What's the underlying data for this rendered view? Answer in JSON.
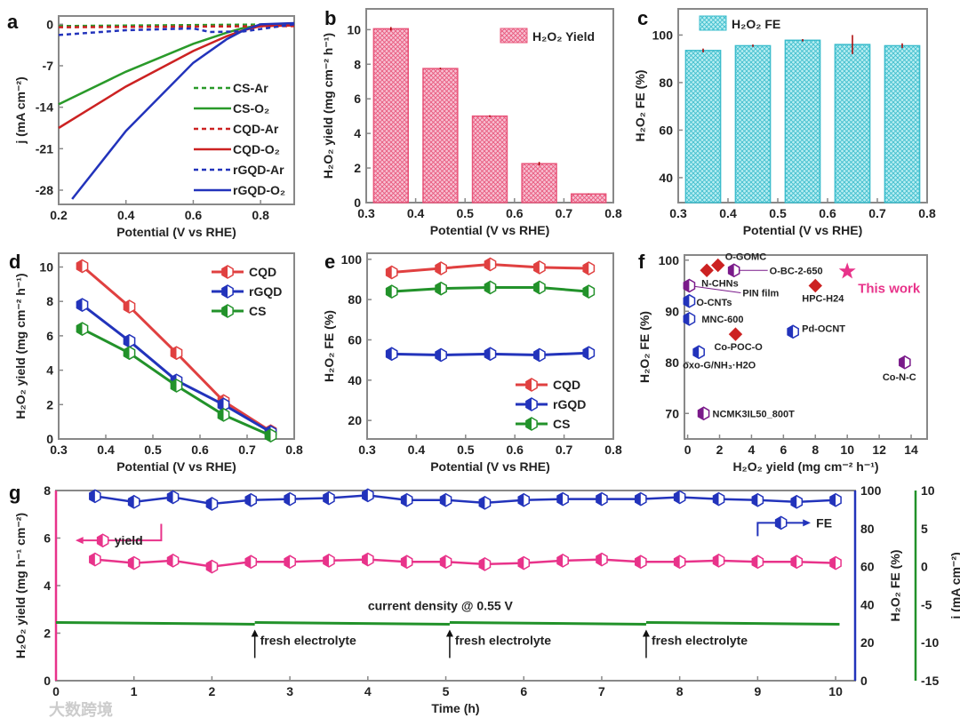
{
  "chart_data": [
    {
      "panel": "a",
      "type": "line",
      "xlabel": "Potential (V vs RHE)",
      "ylabel": "j (mA cm-2)",
      "xlim": [
        0.2,
        0.9
      ],
      "ylim": [
        -30.4,
        1.4
      ],
      "xticks": [
        "0.2",
        "0.4",
        "0.6",
        "0.8"
      ],
      "yticks": [
        "0",
        "-7",
        "-14",
        "-21",
        "-28"
      ],
      "legend": "center-right",
      "series": [
        {
          "name": "CS-Ar",
          "color": "#2a9a2a",
          "dash": true,
          "x": [
            0.2,
            0.9
          ],
          "y": [
            -0.3,
            0
          ]
        },
        {
          "name": "CS-O2",
          "color": "#2a9a2a",
          "dash": false,
          "x": [
            0.2,
            0.4,
            0.6,
            0.7,
            0.75,
            0.8,
            0.9
          ],
          "y": [
            -13.5,
            -8,
            -3.3,
            -1.4,
            -0.6,
            -0.2,
            0
          ]
        },
        {
          "name": "CQD-Ar",
          "color": "#cc2222",
          "dash": true,
          "x": [
            0.2,
            0.9
          ],
          "y": [
            -0.5,
            -0.3
          ]
        },
        {
          "name": "CQD-O2",
          "color": "#cc2222",
          "dash": false,
          "x": [
            0.2,
            0.4,
            0.6,
            0.7,
            0.75,
            0.8,
            0.9
          ],
          "y": [
            -17.5,
            -10.5,
            -4.5,
            -2,
            -1,
            -0.3,
            -0.2
          ]
        },
        {
          "name": "rGQD-Ar",
          "color": "#2233bb",
          "dash": true,
          "x": [
            0.2,
            0.4,
            0.6,
            0.65,
            0.75,
            0.9
          ],
          "y": [
            -1.8,
            -1,
            -0.7,
            -1.3,
            -1.2,
            0
          ]
        },
        {
          "name": "rGQD-O2",
          "color": "#2233bb",
          "dash": false,
          "x": [
            0.24,
            0.4,
            0.6,
            0.7,
            0.75,
            0.8,
            0.9
          ],
          "y": [
            -29.5,
            -18,
            -6.5,
            -2.5,
            -1,
            0,
            0.2
          ]
        }
      ]
    },
    {
      "panel": "b",
      "type": "bar",
      "xlabel": "Potential (V vs RHE)",
      "ylabel": "H2O2 yield (mg cm-2 h-1)",
      "xlim": [
        0.3,
        0.8
      ],
      "ylim": [
        0,
        11.2
      ],
      "xticks": [
        "0.3",
        "0.4",
        "0.5",
        "0.6",
        "0.7",
        "0.8"
      ],
      "yticks": [
        "0",
        "2",
        "4",
        "6",
        "8",
        "10"
      ],
      "legend": "top-right",
      "legend_label": "H2O2 Yield",
      "color": "#e8557a",
      "x": [
        0.35,
        0.45,
        0.55,
        0.65,
        0.75
      ],
      "values": [
        10.05,
        7.75,
        5.0,
        2.25,
        0.5
      ],
      "errors": [
        0.1,
        0.05,
        0.05,
        0.1,
        0.02
      ]
    },
    {
      "panel": "c",
      "type": "bar",
      "xlabel": "Potential (V vs RHE)",
      "ylabel": "H2O2 FE (%)",
      "xlim": [
        0.3,
        0.8
      ],
      "ylim": [
        29.5,
        111
      ],
      "xticks": [
        "0.3",
        "0.4",
        "0.5",
        "0.6",
        "0.7",
        "0.8"
      ],
      "yticks": [
        "40",
        "60",
        "80",
        "100"
      ],
      "legend": "top-left",
      "legend_label": "H2O2 FE",
      "color": "#3bbccc",
      "x": [
        0.35,
        0.45,
        0.55,
        0.65,
        0.75
      ],
      "values": [
        93.5,
        95.5,
        97.8,
        96,
        95.5
      ],
      "errors": [
        0.8,
        0.5,
        0.5,
        4,
        1
      ]
    },
    {
      "panel": "d",
      "type": "line",
      "xlabel": "Potential (V vs RHE)",
      "ylabel": "H2O2 yield (mg cm-2 h-1)",
      "xlim": [
        0.3,
        0.8
      ],
      "ylim": [
        0,
        10.8
      ],
      "xticks": [
        "0.3",
        "0.4",
        "0.5",
        "0.6",
        "0.7",
        "0.8"
      ],
      "yticks": [
        "0",
        "2",
        "4",
        "6",
        "8",
        "10"
      ],
      "legend": "top-right",
      "series": [
        {
          "name": "CQD",
          "color": "#e04040",
          "x": [
            0.35,
            0.45,
            0.55,
            0.65,
            0.75
          ],
          "y": [
            10.05,
            7.7,
            5.0,
            2.2,
            0.45
          ]
        },
        {
          "name": "rGQD",
          "color": "#2233bb",
          "x": [
            0.35,
            0.45,
            0.55,
            0.65,
            0.75
          ],
          "y": [
            7.8,
            5.7,
            3.4,
            2.0,
            0.4
          ]
        },
        {
          "name": "CS",
          "color": "#22922a",
          "x": [
            0.35,
            0.45,
            0.55,
            0.65,
            0.75
          ],
          "y": [
            6.4,
            5.0,
            3.1,
            1.4,
            0.2
          ]
        }
      ]
    },
    {
      "panel": "e",
      "type": "line",
      "xlabel": "Potential (V vs RHE)",
      "ylabel": "H2O2 FE (%)",
      "xlim": [
        0.3,
        0.8
      ],
      "ylim": [
        10.8,
        103
      ],
      "xticks": [
        "0.3",
        "0.4",
        "0.5",
        "0.6",
        "0.7",
        "0.8"
      ],
      "yticks": [
        "20",
        "40",
        "60",
        "80",
        "100"
      ],
      "legend": "bottom-right",
      "series": [
        {
          "name": "CQD",
          "color": "#e04040",
          "x": [
            0.35,
            0.45,
            0.55,
            0.65,
            0.75
          ],
          "y": [
            93.5,
            95.5,
            97.5,
            96,
            95.5
          ]
        },
        {
          "name": "rGQD",
          "color": "#2233bb",
          "x": [
            0.35,
            0.45,
            0.55,
            0.65,
            0.75
          ],
          "y": [
            53,
            52.5,
            53,
            52.5,
            53.5
          ]
        },
        {
          "name": "CS",
          "color": "#22922a",
          "x": [
            0.35,
            0.45,
            0.55,
            0.65,
            0.75
          ],
          "y": [
            84,
            85.5,
            86,
            86,
            84
          ]
        }
      ]
    },
    {
      "panel": "f",
      "type": "scatter",
      "xlabel": "H2O2 yield (mg cm-2 h-1)",
      "ylabel": "H2O2 FE (%)",
      "xlim": [
        -0.2,
        15
      ],
      "ylim": [
        65,
        101
      ],
      "xticks": [
        "0",
        "2",
        "4",
        "6",
        "8",
        "10",
        "12",
        "14"
      ],
      "yticks": [
        "70",
        "80",
        "90",
        "100"
      ],
      "points": [
        {
          "label": "O-GOMC",
          "x": 1.9,
          "y": 99,
          "color": "#cc2222"
        },
        {
          "label": "N-CHNs",
          "x": 1.2,
          "y": 98,
          "color": "#cc2222"
        },
        {
          "label": "O-BC-2-650",
          "x": 2.9,
          "y": 98,
          "color": "#7a1a8a"
        },
        {
          "label": "PIN film",
          "x": 0.1,
          "y": 95,
          "color": "#7a1a8a"
        },
        {
          "label": "O-CNTs",
          "x": 0.1,
          "y": 92,
          "color": "#2233bb"
        },
        {
          "label": "MNC-600",
          "x": 0.1,
          "y": 88.5,
          "color": "#2233bb"
        },
        {
          "label": "Co-POC-O",
          "x": 3.0,
          "y": 85.5,
          "color": "#cc2222"
        },
        {
          "label": "oxo-G/NH3·H2O",
          "x": 0.7,
          "y": 82,
          "color": "#2233bb"
        },
        {
          "label": "NCMK3IL50_800T",
          "x": 1.0,
          "y": 70,
          "color": "#7a1a8a"
        },
        {
          "label": "Pd-OCNT",
          "x": 6.6,
          "y": 86,
          "color": "#2233bb"
        },
        {
          "label": "HPC-H24",
          "x": 8.0,
          "y": 95,
          "color": "#cc2222"
        },
        {
          "label": "Co-N-C",
          "x": 13.6,
          "y": 80,
          "color": "#7a1a8a"
        },
        {
          "label": "This work",
          "x": 10.0,
          "y": 97.8,
          "color": "#e8338a"
        }
      ]
    },
    {
      "panel": "g",
      "type": "line",
      "xlabel": "Time (h)",
      "ylabel": "H2O2 yield (mg h-1 cm-2)",
      "ylabel_right1": "H2O2 FE (%)",
      "ylabel_right2": "j (mA cm-2)",
      "xlim": [
        0,
        10.25
      ],
      "ylim": [
        0,
        8
      ],
      "ylim_right1": [
        0,
        100
      ],
      "ylim_right2": [
        -15,
        10
      ],
      "xticks": [
        "0",
        "1",
        "2",
        "3",
        "4",
        "5",
        "6",
        "7",
        "8",
        "9",
        "10"
      ],
      "yticks": [
        "0",
        "2",
        "4",
        "6",
        "8"
      ],
      "yticks_right1": [
        "0",
        "20",
        "40",
        "60",
        "80",
        "100"
      ],
      "yticks_right2": [
        "-15",
        "-10",
        "-5",
        "0",
        "5",
        "10"
      ],
      "x": [
        0.5,
        1,
        1.5,
        2,
        2.5,
        3,
        3.5,
        4,
        4.5,
        5,
        5.5,
        6,
        6.5,
        7,
        7.5,
        8,
        8.5,
        9,
        9.5,
        10
      ],
      "yield": [
        5.1,
        4.95,
        5.05,
        4.8,
        5.0,
        5.0,
        5.05,
        5.1,
        5.0,
        5.0,
        4.9,
        4.95,
        5.05,
        5.1,
        5.0,
        5.0,
        5.05,
        5.0,
        5.0,
        4.95
      ],
      "fe": [
        97,
        94,
        96.5,
        93,
        95,
        95.5,
        96,
        97.5,
        95,
        95,
        93.5,
        95,
        95.5,
        95.5,
        95.5,
        96.5,
        95.5,
        95,
        94,
        95
      ],
      "current_label": "current density @ 0.55 V",
      "current_value_on_yield_axis": 2.45,
      "yield_legend": "yield",
      "fe_legend": "FE",
      "annotations": [
        {
          "x": 2.55,
          "text": "fresh electrolyte"
        },
        {
          "x": 5.05,
          "text": "fresh electrolyte"
        },
        {
          "x": 7.57,
          "text": "fresh electrolyte"
        }
      ]
    }
  ],
  "watermark": "大数跨境",
  "panel_letters": [
    "a",
    "b",
    "c",
    "d",
    "e",
    "f",
    "g"
  ]
}
